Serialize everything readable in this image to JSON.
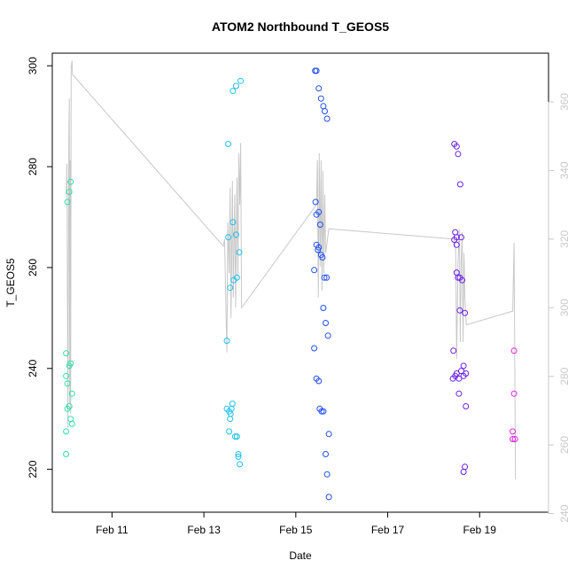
{
  "chart_data": {
    "type": "scatter",
    "title": "ATOM2 Northbound T_GEOS5",
    "xlabel": "Date",
    "ylabel": "T_GEOS5",
    "xlim": [
      9.7,
      20.5
    ],
    "ylim": [
      211.5,
      302.5
    ],
    "x_ticks": [
      {
        "value": 11,
        "label": "Feb 11"
      },
      {
        "value": 13,
        "label": "Feb 13"
      },
      {
        "value": 15,
        "label": "Feb 15"
      },
      {
        "value": 17,
        "label": "Feb 17"
      },
      {
        "value": 19,
        "label": "Feb 19"
      }
    ],
    "y_ticks": [
      {
        "value": 220,
        "label": "220"
      },
      {
        "value": 240,
        "label": "240"
      },
      {
        "value": 260,
        "label": "260"
      },
      {
        "value": 280,
        "label": "280"
      },
      {
        "value": 300,
        "label": "300"
      }
    ],
    "secondary_axis": {
      "ylim": [
        240.4,
        374.2
      ],
      "ticks": [
        {
          "value": 240,
          "label": "240"
        },
        {
          "value": 260,
          "label": "260"
        },
        {
          "value": 280,
          "label": "280"
        },
        {
          "value": 300,
          "label": "300"
        },
        {
          "value": 320,
          "label": "320"
        },
        {
          "value": 340,
          "label": "340"
        },
        {
          "value": 360,
          "label": "360"
        }
      ],
      "color": "#c8c8c8"
    },
    "colors": {
      "axis": "#000000",
      "secondary": "#c8c8c8",
      "line": "#c8c8c8"
    },
    "series": [
      {
        "color": "#2ee0a8",
        "points": [
          [
            10.0,
            243.0
          ],
          [
            10.0,
            238.5
          ],
          [
            10.03,
            237.0
          ],
          [
            10.07,
            240.5
          ],
          [
            10.1,
            241.0
          ],
          [
            10.03,
            232.0
          ],
          [
            10.07,
            232.5
          ],
          [
            10.1,
            230.0
          ],
          [
            10.13,
            229.0
          ],
          [
            10.13,
            235.0
          ],
          [
            10.0,
            227.5
          ],
          [
            10.0,
            223.0
          ],
          [
            10.03,
            273.0
          ],
          [
            10.07,
            275.0
          ],
          [
            10.1,
            277.0
          ]
        ]
      },
      {
        "color": "#1ec0ee",
        "points": [
          [
            13.5,
            245.5
          ],
          [
            13.53,
            266.0
          ],
          [
            13.57,
            256.0
          ],
          [
            13.53,
            284.5
          ],
          [
            13.63,
            295.0
          ],
          [
            13.7,
            296.0
          ],
          [
            13.8,
            297.0
          ],
          [
            13.63,
            269.0
          ],
          [
            13.7,
            266.5
          ],
          [
            13.77,
            263.0
          ],
          [
            13.65,
            257.5
          ],
          [
            13.72,
            258.0
          ],
          [
            13.5,
            232.0
          ],
          [
            13.55,
            231.5
          ],
          [
            13.6,
            232.0
          ],
          [
            13.62,
            233.0
          ],
          [
            13.58,
            231.0
          ],
          [
            13.57,
            230.0
          ],
          [
            13.55,
            227.5
          ],
          [
            13.68,
            226.5
          ],
          [
            13.72,
            226.5
          ],
          [
            13.75,
            223.0
          ],
          [
            13.75,
            222.5
          ],
          [
            13.78,
            221.0
          ]
        ]
      },
      {
        "color": "#1f4ef2",
        "points": [
          [
            15.42,
            299.0
          ],
          [
            15.45,
            299.0
          ],
          [
            15.5,
            295.5
          ],
          [
            15.55,
            293.5
          ],
          [
            15.6,
            292.0
          ],
          [
            15.63,
            291.0
          ],
          [
            15.68,
            289.5
          ],
          [
            15.43,
            273.0
          ],
          [
            15.45,
            270.5
          ],
          [
            15.5,
            271.0
          ],
          [
            15.53,
            268.5
          ],
          [
            15.45,
            264.5
          ],
          [
            15.5,
            264.0
          ],
          [
            15.55,
            262.5
          ],
          [
            15.58,
            262.0
          ],
          [
            15.48,
            263.5
          ],
          [
            15.4,
            259.5
          ],
          [
            15.62,
            258.0
          ],
          [
            15.67,
            258.0
          ],
          [
            15.6,
            252.0
          ],
          [
            15.65,
            249.0
          ],
          [
            15.7,
            246.5
          ],
          [
            15.4,
            244.0
          ],
          [
            15.45,
            238.0
          ],
          [
            15.5,
            237.5
          ],
          [
            15.52,
            232.0
          ],
          [
            15.56,
            231.5
          ],
          [
            15.6,
            231.5
          ],
          [
            15.72,
            227.0
          ],
          [
            15.65,
            223.0
          ],
          [
            15.68,
            219.0
          ],
          [
            15.72,
            214.5
          ]
        ]
      },
      {
        "color": "#6a20ee",
        "points": [
          [
            18.45,
            284.5
          ],
          [
            18.5,
            284.0
          ],
          [
            18.53,
            282.5
          ],
          [
            18.58,
            276.5
          ],
          [
            18.47,
            267.0
          ],
          [
            18.5,
            266.0
          ],
          [
            18.45,
            265.5
          ],
          [
            18.5,
            264.5
          ],
          [
            18.6,
            266.0
          ],
          [
            18.5,
            259.0
          ],
          [
            18.53,
            258.0
          ],
          [
            18.57,
            258.0
          ],
          [
            18.62,
            257.5
          ],
          [
            18.57,
            251.5
          ],
          [
            18.68,
            251.0
          ],
          [
            18.43,
            243.5
          ],
          [
            18.42,
            238.0
          ],
          [
            18.47,
            238.5
          ],
          [
            18.5,
            239.0
          ],
          [
            18.55,
            238.0
          ],
          [
            18.6,
            239.5
          ],
          [
            18.65,
            240.5
          ],
          [
            18.65,
            238.5
          ],
          [
            18.7,
            239.0
          ],
          [
            18.55,
            235.0
          ],
          [
            18.7,
            232.5
          ],
          [
            18.68,
            220.5
          ],
          [
            18.65,
            219.5
          ]
        ]
      },
      {
        "color": "#e020e0",
        "points": [
          [
            19.75,
            243.5
          ],
          [
            19.75,
            235.0
          ],
          [
            19.72,
            227.5
          ],
          [
            19.72,
            226.0
          ],
          [
            19.77,
            226.0
          ]
        ]
      }
    ],
    "line_series": {
      "axis": "secondary",
      "color": "#c8c8c8",
      "points": [
        [
          10.0,
          333
        ],
        [
          10.02,
          342
        ],
        [
          10.04,
          265
        ],
        [
          10.06,
          350
        ],
        [
          10.07,
          361
        ],
        [
          10.08,
          272
        ],
        [
          10.09,
          343
        ],
        [
          10.1,
          269
        ],
        [
          10.11,
          370
        ],
        [
          10.13,
          372
        ],
        [
          10.14,
          368
        ],
        [
          13.42,
          318
        ],
        [
          13.45,
          320
        ],
        [
          13.5,
          287
        ],
        [
          13.52,
          325
        ],
        [
          13.55,
          310
        ],
        [
          13.57,
          335
        ],
        [
          13.59,
          297
        ],
        [
          13.62,
          337
        ],
        [
          13.64,
          303
        ],
        [
          13.67,
          333
        ],
        [
          13.69,
          300
        ],
        [
          13.72,
          338
        ],
        [
          13.74,
          308
        ],
        [
          13.76,
          345
        ],
        [
          13.78,
          330
        ],
        [
          13.8,
          348
        ],
        [
          13.82,
          300
        ],
        [
          15.45,
          330
        ],
        [
          15.47,
          343
        ],
        [
          15.49,
          303
        ],
        [
          15.51,
          345
        ],
        [
          15.53,
          312
        ],
        [
          15.55,
          343
        ],
        [
          15.57,
          305
        ],
        [
          15.59,
          340
        ],
        [
          15.61,
          310
        ],
        [
          15.63,
          333
        ],
        [
          15.65,
          316
        ],
        [
          15.68,
          319
        ],
        [
          15.72,
          323
        ],
        [
          18.45,
          320
        ],
        [
          18.48,
          316
        ],
        [
          18.5,
          285
        ],
        [
          18.53,
          313
        ],
        [
          18.56,
          323
        ],
        [
          18.58,
          290
        ],
        [
          18.6,
          314
        ],
        [
          18.62,
          322
        ],
        [
          18.64,
          290
        ],
        [
          18.66,
          316
        ],
        [
          18.68,
          303
        ],
        [
          18.71,
          295
        ],
        [
          19.72,
          299
        ],
        [
          19.75,
          319
        ],
        [
          19.78,
          250
        ]
      ]
    }
  }
}
